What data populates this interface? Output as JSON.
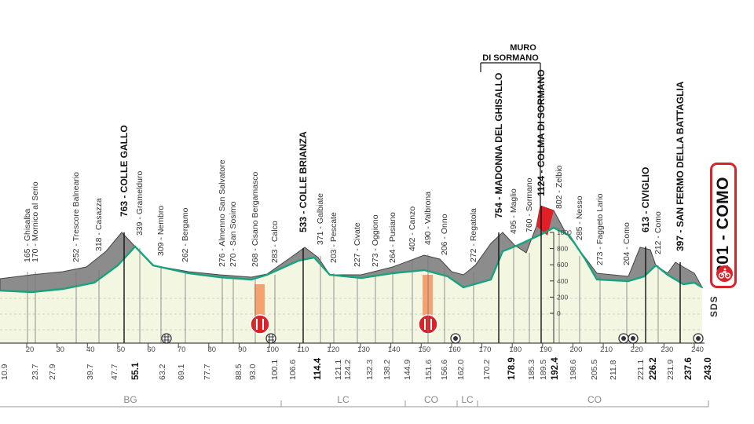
{
  "places": [
    {
      "km": 0,
      "name": "165 - Ghisalba",
      "bold": false
    },
    {
      "km": 0,
      "name": "170 - Mornico al Serio",
      "bold": false
    },
    {
      "km": 0,
      "name": "252 - Trescore Balneario",
      "bold": false
    },
    {
      "km": 0,
      "name": "318 - Casazza",
      "bold": false
    },
    {
      "km": 0,
      "name": "763 - COLLE GALLO",
      "bold": true
    },
    {
      "km": 0,
      "name": "339 - Gramelduro",
      "bold": false
    },
    {
      "km": 0,
      "name": "309 - Nembro",
      "bold": false
    },
    {
      "km": 0,
      "name": "262 - Bergamo",
      "bold": false
    },
    {
      "km": 0,
      "name": "276 - Almenno San Salvatore",
      "bold": false
    },
    {
      "km": 0,
      "name": "270 - San Sosimo",
      "bold": false
    },
    {
      "km": 0,
      "name": "268 - Cisano Bergamasco",
      "bold": false
    },
    {
      "km": 0,
      "name": "283 - Calco",
      "bold": false
    },
    {
      "km": 0,
      "name": "533 - COLLE BRIANZA",
      "bold": true
    },
    {
      "km": 0,
      "name": "371 - Galbiate",
      "bold": false
    },
    {
      "km": 0,
      "name": "203 - Pescate",
      "bold": false
    },
    {
      "km": 0,
      "name": "227 - Civate",
      "bold": false
    },
    {
      "km": 0,
      "name": "273 - Oggiono",
      "bold": false
    },
    {
      "km": 0,
      "name": "264 - Pusiano",
      "bold": false
    },
    {
      "km": 0,
      "name": "402 - Canzo",
      "bold": false
    },
    {
      "km": 0,
      "name": "490 - Valbrona",
      "bold": false
    },
    {
      "km": 0,
      "name": "206 - Onno",
      "bold": false
    },
    {
      "km": 0,
      "name": "272 - Regatola",
      "bold": false
    },
    {
      "km": 0,
      "name": "754 - MADONNA DEL GHISALLO",
      "bold": true
    },
    {
      "km": 0,
      "name": "495 - Maglio",
      "bold": false
    },
    {
      "km": 0,
      "name": "760 - Sormano",
      "bold": false
    },
    {
      "km": 0,
      "name": "1124 - COLMA DI SORMANO",
      "bold": true
    },
    {
      "km": 0,
      "name": "802 - Zelbio",
      "bold": false
    },
    {
      "km": 0,
      "name": "285 - Nesso",
      "bold": false
    },
    {
      "km": 0,
      "name": "273 - Faggeto Lario",
      "bold": false
    },
    {
      "km": 0,
      "name": "204 - Como",
      "bold": false
    },
    {
      "km": 0,
      "name": "613 - CIVIGLIO",
      "bold": true
    },
    {
      "km": 0,
      "name": "212 - Como",
      "bold": false
    },
    {
      "km": 0,
      "name": "397 - SAN FERMO DELLA BATTAGLIA",
      "bold": true
    }
  ],
  "muro_label": [
    "MURO",
    "DI SORMANO"
  ],
  "altitude_ticks": [
    "1000",
    "800",
    "600",
    "400",
    "200",
    "0"
  ],
  "km_ticks": [
    "20",
    "30",
    "40",
    "50",
    "60",
    "70",
    "80",
    "90",
    "100",
    "110",
    "120",
    "130",
    "140",
    "150",
    "160",
    "170",
    "180",
    "190",
    "200",
    "210",
    "220",
    "230",
    "240"
  ],
  "distances": [
    {
      "label": "10.9",
      "bold": false
    },
    {
      "label": "23.7",
      "bold": false
    },
    {
      "label": "27.9",
      "bold": false
    },
    {
      "label": "39.7",
      "bold": false
    },
    {
      "label": "47.7",
      "bold": false
    },
    {
      "label": "55.1",
      "bold": true
    },
    {
      "label": "63.2",
      "bold": false
    },
    {
      "label": "69.1",
      "bold": false
    },
    {
      "label": "77.7",
      "bold": false
    },
    {
      "label": "88.5",
      "bold": false
    },
    {
      "label": "93.0",
      "bold": false
    },
    {
      "label": "100.1",
      "bold": false
    },
    {
      "label": "106.6",
      "bold": false
    },
    {
      "label": "114.4",
      "bold": true
    },
    {
      "label": "121.1",
      "bold": false
    },
    {
      "label": "124.2",
      "bold": false
    },
    {
      "label": "132.3",
      "bold": false
    },
    {
      "label": "138.2",
      "bold": false
    },
    {
      "label": "144.9",
      "bold": false
    },
    {
      "label": "151.6",
      "bold": false
    },
    {
      "label": "156.6",
      "bold": false
    },
    {
      "label": "162.0",
      "bold": false
    },
    {
      "label": "170.2",
      "bold": false
    },
    {
      "label": "178.9",
      "bold": true
    },
    {
      "label": "185.3",
      "bold": false
    },
    {
      "label": "189.5",
      "bold": false
    },
    {
      "label": "192.4",
      "bold": true
    },
    {
      "label": "198.6",
      "bold": false
    },
    {
      "label": "205.5",
      "bold": false
    },
    {
      "label": "211.8",
      "bold": false
    },
    {
      "label": "221.1",
      "bold": false
    },
    {
      "label": "226.2",
      "bold": true
    },
    {
      "label": "231.9",
      "bold": false
    },
    {
      "label": "237.6",
      "bold": true
    },
    {
      "label": "243.0",
      "bold": true
    }
  ],
  "provinces": [
    "BG",
    "LC",
    "CO",
    "LC",
    "CO"
  ],
  "finish": {
    "label": "201 - COMO"
  },
  "sds_label": "SDS",
  "colors": {
    "climb": "#8c8c8c",
    "climb_dark": "#555555",
    "plain": "#f3f7e2",
    "route": "#18a37f",
    "muro": "#e01f26",
    "feed": "#f4a26f",
    "feed_icon": "#d9232a"
  }
}
